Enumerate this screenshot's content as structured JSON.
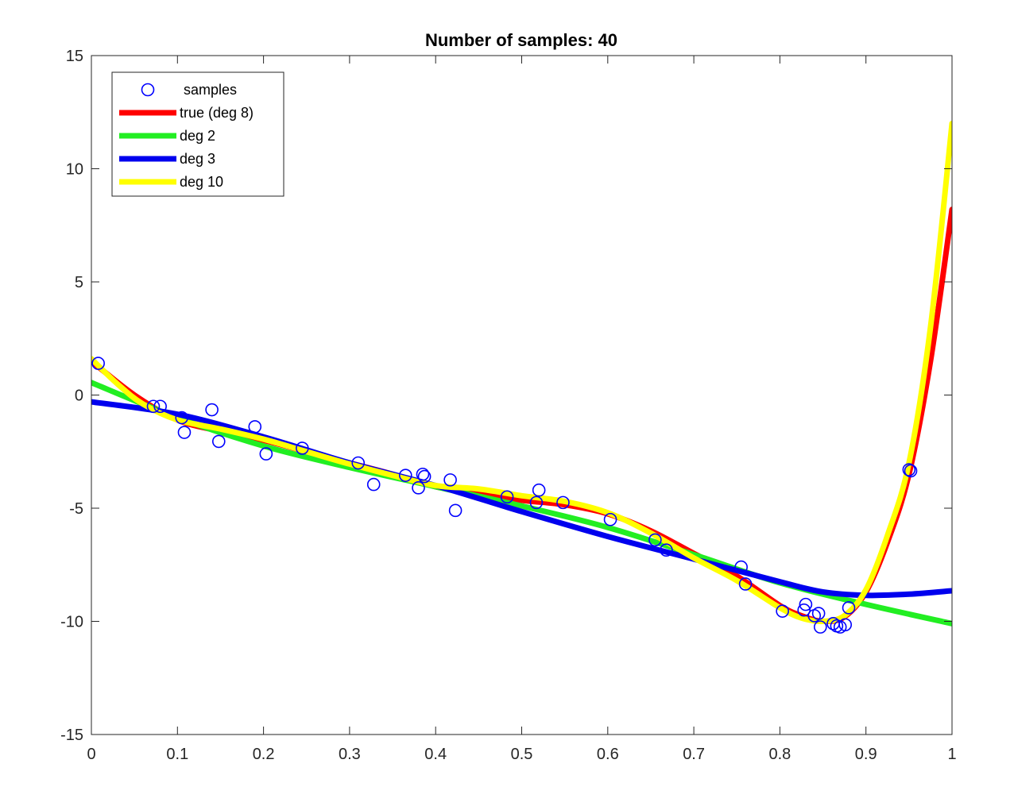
{
  "chart_data": {
    "type": "line",
    "title": "Number of samples: 40",
    "xlabel": "",
    "ylabel": "",
    "xlim": [
      0,
      1
    ],
    "ylim": [
      -15,
      15
    ],
    "x_ticks": [
      0,
      0.1,
      0.2,
      0.3,
      0.4,
      0.5,
      0.6,
      0.7,
      0.8,
      0.9,
      1
    ],
    "x_tick_labels": [
      "0",
      "0.1",
      "0.2",
      "0.3",
      "0.4",
      "0.5",
      "0.6",
      "0.7",
      "0.8",
      "0.9",
      "1"
    ],
    "y_ticks": [
      -15,
      -10,
      -5,
      0,
      5,
      10,
      15
    ],
    "y_tick_labels": [
      "-15",
      "-10",
      "-5",
      "0",
      "5",
      "10",
      "15"
    ],
    "grid": false,
    "legend_position": "top-left",
    "samples": {
      "name": "samples",
      "color": "#0000ff",
      "marker": "circle",
      "points": [
        [
          0.008,
          1.4
        ],
        [
          0.072,
          -0.5
        ],
        [
          0.08,
          -0.5
        ],
        [
          0.105,
          -1.0
        ],
        [
          0.108,
          -1.65
        ],
        [
          0.14,
          -0.65
        ],
        [
          0.148,
          -2.05
        ],
        [
          0.19,
          -1.4
        ],
        [
          0.203,
          -2.6
        ],
        [
          0.245,
          -2.35
        ],
        [
          0.31,
          -3.0
        ],
        [
          0.328,
          -3.95
        ],
        [
          0.365,
          -3.55
        ],
        [
          0.38,
          -4.1
        ],
        [
          0.385,
          -3.5
        ],
        [
          0.387,
          -3.6
        ],
        [
          0.417,
          -3.75
        ],
        [
          0.423,
          -5.1
        ],
        [
          0.483,
          -4.5
        ],
        [
          0.517,
          -4.75
        ],
        [
          0.52,
          -4.2
        ],
        [
          0.548,
          -4.75
        ],
        [
          0.603,
          -5.5
        ],
        [
          0.655,
          -6.4
        ],
        [
          0.668,
          -6.85
        ],
        [
          0.755,
          -7.6
        ],
        [
          0.76,
          -8.35
        ],
        [
          0.803,
          -9.55
        ],
        [
          0.828,
          -9.5
        ],
        [
          0.83,
          -9.25
        ],
        [
          0.84,
          -9.75
        ],
        [
          0.845,
          -9.65
        ],
        [
          0.847,
          -10.25
        ],
        [
          0.862,
          -10.1
        ],
        [
          0.866,
          -10.2
        ],
        [
          0.87,
          -10.25
        ],
        [
          0.876,
          -10.15
        ],
        [
          0.88,
          -9.4
        ],
        [
          0.95,
          -3.3
        ],
        [
          0.952,
          -3.35
        ]
      ]
    },
    "series": [
      {
        "name": "true (deg 8)",
        "color": "#ff0000",
        "x": [
          0,
          0.05,
          0.1,
          0.15,
          0.2,
          0.25,
          0.3,
          0.35,
          0.4,
          0.45,
          0.5,
          0.55,
          0.6,
          0.65,
          0.7,
          0.75,
          0.8,
          0.825,
          0.85,
          0.875,
          0.9,
          0.925,
          0.95,
          0.975,
          1.0
        ],
        "y": [
          1.5,
          0.0,
          -1.1,
          -1.6,
          -2.0,
          -2.5,
          -3.0,
          -3.5,
          -4.05,
          -4.35,
          -4.65,
          -4.85,
          -5.25,
          -6.0,
          -7.0,
          -8.0,
          -9.3,
          -9.75,
          -10.0,
          -9.8,
          -8.7,
          -6.5,
          -3.5,
          1.5,
          8.2
        ]
      },
      {
        "name": "deg 2",
        "color": "#22ee22",
        "x": [
          0,
          0.1,
          0.2,
          0.3,
          0.4,
          0.5,
          0.6,
          0.7,
          0.8,
          0.9,
          1.0
        ],
        "y": [
          0.55,
          -1.0,
          -2.25,
          -3.2,
          -4.05,
          -4.9,
          -5.85,
          -7.05,
          -8.3,
          -9.25,
          -10.1
        ]
      },
      {
        "name": "deg 3",
        "color": "#0000ee",
        "x": [
          0,
          0.1,
          0.2,
          0.3,
          0.4,
          0.5,
          0.6,
          0.7,
          0.8,
          0.85,
          0.9,
          0.95,
          1.0
        ],
        "y": [
          -0.3,
          -0.85,
          -1.85,
          -3.0,
          -4.0,
          -5.15,
          -6.25,
          -7.25,
          -8.25,
          -8.7,
          -8.85,
          -8.8,
          -8.65
        ]
      },
      {
        "name": "deg 10",
        "color": "#ffff00",
        "x": [
          0,
          0.03,
          0.06,
          0.1,
          0.15,
          0.2,
          0.25,
          0.3,
          0.35,
          0.4,
          0.45,
          0.5,
          0.55,
          0.6,
          0.65,
          0.7,
          0.75,
          0.8,
          0.825,
          0.85,
          0.875,
          0.9,
          0.925,
          0.95,
          0.975,
          1.0
        ],
        "y": [
          1.6,
          0.5,
          -0.4,
          -1.1,
          -1.5,
          -1.95,
          -2.5,
          -3.05,
          -3.55,
          -4.0,
          -4.15,
          -4.45,
          -4.7,
          -5.2,
          -6.1,
          -7.2,
          -8.2,
          -9.4,
          -9.85,
          -10.0,
          -9.75,
          -8.6,
          -6.2,
          -3.0,
          3.0,
          12.0
        ]
      }
    ]
  }
}
